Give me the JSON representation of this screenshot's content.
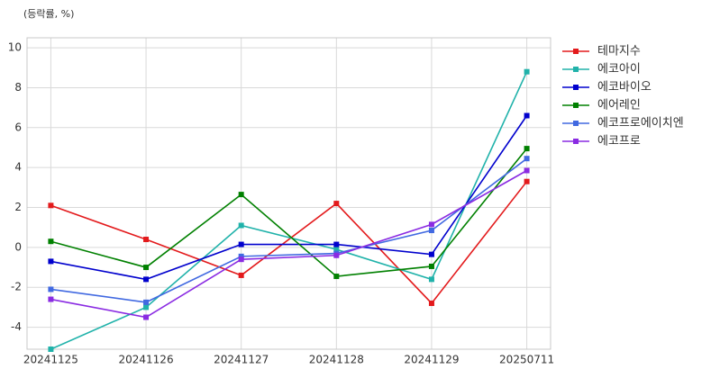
{
  "chart_data": {
    "type": "line",
    "y_label": "(등락률, %)",
    "categories": [
      "20241125",
      "20241126",
      "20241127",
      "20241128",
      "20241129",
      "20250711"
    ],
    "series": [
      {
        "name": "테마지수",
        "color": "#e31a1c",
        "values": [
          2.1,
          0.4,
          -1.4,
          2.2,
          -2.8,
          3.3
        ]
      },
      {
        "name": "에코아이",
        "color": "#20b2aa",
        "values": [
          -5.1,
          -3.0,
          1.1,
          -0.1,
          -1.6,
          8.8
        ]
      },
      {
        "name": "에코바이오",
        "color": "#0000cd",
        "values": [
          -0.7,
          -1.6,
          0.15,
          0.15,
          -0.35,
          6.6
        ]
      },
      {
        "name": "에어레인",
        "color": "#008000",
        "values": [
          0.3,
          -1.0,
          2.65,
          -1.45,
          -0.95,
          4.95
        ]
      },
      {
        "name": "에코프로에이치엔",
        "color": "#4169e1",
        "values": [
          -2.1,
          -2.75,
          -0.45,
          -0.3,
          0.85,
          4.45
        ]
      },
      {
        "name": "에코프로",
        "color": "#8a2be2",
        "values": [
          -2.6,
          -3.5,
          -0.6,
          -0.4,
          1.15,
          3.85
        ]
      }
    ],
    "ylim": [
      -5.1,
      10.5
    ],
    "yticks": [
      -4,
      -2,
      0,
      2,
      4,
      6,
      8,
      10
    ],
    "grid": true,
    "legend": "outside-right"
  }
}
